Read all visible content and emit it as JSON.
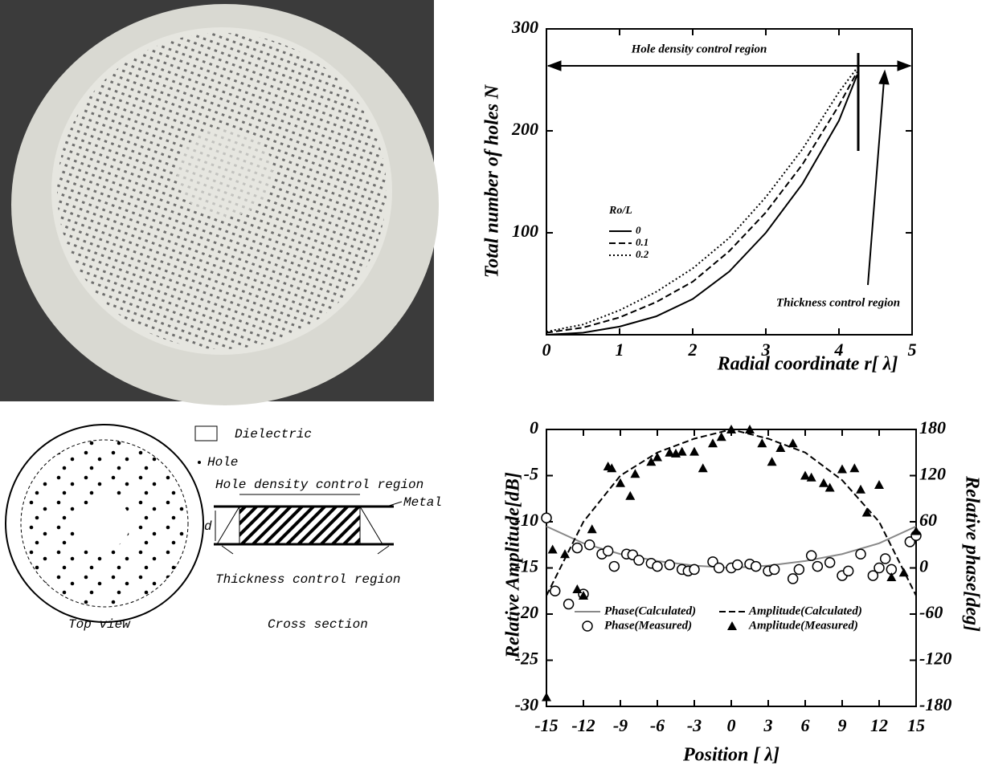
{
  "diagram": {
    "legend_dielectric": "Dielectric",
    "legend_hole": "Hole",
    "hole_density_label": "Hole density control region",
    "metal_label": "Metal",
    "d_label": "d",
    "thickness_label": "Thickness control region",
    "top_view": "Top view",
    "cross_section": "Cross section"
  },
  "chart_data": [
    {
      "type": "line",
      "x_label": "Radial coordinate r[ λ]",
      "y_label": "Total number of holes N",
      "legend_title": "Ro/L",
      "annotations": [
        "Hole density control region",
        "Thickness control region"
      ],
      "xlim": [
        0,
        5
      ],
      "ylim": [
        0,
        300
      ],
      "xticks": [
        0,
        1,
        2,
        3,
        4,
        5
      ],
      "yticks": [
        100,
        200,
        300
      ],
      "series": [
        {
          "name": "0",
          "color": "#000000",
          "line_style": "solid",
          "x": [
            0,
            0.5,
            1,
            1.5,
            2,
            2.5,
            3,
            3.5,
            4,
            4.25
          ],
          "values": [
            0,
            2,
            8,
            18,
            35,
            62,
            100,
            148,
            210,
            255
          ]
        },
        {
          "name": "0.1",
          "color": "#000000",
          "line_style": "dashed",
          "x": [
            0,
            0.5,
            1,
            1.5,
            2,
            2.5,
            3,
            3.5,
            4,
            4.25
          ],
          "values": [
            2,
            7,
            17,
            32,
            52,
            82,
            120,
            167,
            225,
            258
          ]
        },
        {
          "name": "0.2",
          "color": "#000000",
          "line_style": "dotted",
          "x": [
            0,
            0.5,
            1,
            1.5,
            2,
            2.5,
            3,
            3.5,
            4,
            4.25
          ],
          "values": [
            3,
            10,
            24,
            42,
            65,
            95,
            135,
            182,
            238,
            262
          ]
        }
      ]
    },
    {
      "type": "line",
      "x_label": "Position [ λ]",
      "y_label": "Relative Amplitude[dB]",
      "y2_label": "Relative phase[deg]",
      "xlim": [
        -15,
        15
      ],
      "ylim": [
        -30,
        0
      ],
      "y2lim": [
        -180,
        180
      ],
      "xticks": [
        -15,
        -12,
        -9,
        -6,
        -3,
        0,
        3,
        6,
        9,
        12,
        15
      ],
      "yticks": [
        -30,
        -25,
        -20,
        -15,
        -10,
        -5,
        0
      ],
      "y2ticks": [
        -180,
        -120,
        -60,
        0,
        60,
        120,
        180
      ],
      "series": [
        {
          "name": "Phase(Calculated)",
          "color": "#888888",
          "line_style": "solid",
          "axis": "y2",
          "x": [
            -15,
            -12,
            -9,
            -6,
            -3,
            0,
            3,
            6,
            9,
            12,
            15
          ],
          "values": [
            54,
            32,
            18,
            9,
            3,
            0,
            3,
            9,
            18,
            32,
            54
          ]
        },
        {
          "name": "Amplitude(Calculated)",
          "color": "#000000",
          "line_style": "dashed",
          "x": [
            -15,
            -12,
            -9,
            -6,
            -3,
            0,
            3,
            6,
            9,
            12,
            15
          ],
          "values": [
            -18,
            -10,
            -5,
            -2.5,
            -1,
            0,
            -1,
            -2.5,
            -5.5,
            -10,
            -18
          ]
        },
        {
          "name": "Phase(Measured)",
          "color": "#000000",
          "marker": "circle",
          "axis": "y2",
          "x": [
            -15,
            -14.3,
            -13.2,
            -12.5,
            -12,
            -11.5,
            -10.5,
            -10,
            -9.5,
            -8.5,
            -8,
            -7.5,
            -6.5,
            -6,
            -5,
            -4,
            -3.5,
            -3,
            -1.5,
            -1,
            0,
            0.5,
            1.5,
            2,
            3,
            3.5,
            5,
            5.5,
            6.5,
            7,
            8,
            9,
            9.5,
            10.5,
            11.5,
            12,
            12.5,
            13,
            14.5,
            15
          ],
          "values": [
            65,
            -30,
            -47,
            26,
            -34,
            30,
            18,
            22,
            2,
            18,
            17,
            10,
            6,
            2,
            4,
            -2,
            -4,
            -2,
            8,
            0,
            0,
            4,
            5,
            2,
            -4,
            -2,
            -14,
            -2,
            16,
            2,
            7,
            -10,
            -4,
            18,
            -10,
            0,
            12,
            -2,
            34,
            42
          ]
        },
        {
          "name": "Amplitude(Measured)",
          "color": "#000000",
          "marker": "triangle",
          "x": [
            -15,
            -14.5,
            -13.5,
            -12.5,
            -12,
            -11.3,
            -10,
            -9.7,
            -9,
            -8.2,
            -7.8,
            -6.5,
            -6,
            -5,
            -4.5,
            -4,
            -3,
            -2.3,
            -1.5,
            -0.8,
            0,
            1.5,
            2.5,
            3.3,
            4,
            5,
            6,
            6.5,
            7.5,
            8,
            9,
            10,
            10.5,
            11,
            12,
            13,
            14,
            15
          ],
          "values": [
            -29,
            -13,
            -13.5,
            -17.3,
            -18,
            -10.8,
            -4,
            -4.2,
            -5.8,
            -7.2,
            -4.8,
            -3.5,
            -3,
            -2.5,
            -2.6,
            -2.4,
            -2.4,
            -4.2,
            -1.5,
            -0.8,
            0,
            0,
            -1.5,
            -3.5,
            -2,
            -1.5,
            -5,
            -5.2,
            -5.8,
            -6.3,
            -4.3,
            -4.2,
            -6.5,
            -9,
            -6,
            -16,
            -15.5,
            -11
          ]
        }
      ]
    }
  ]
}
